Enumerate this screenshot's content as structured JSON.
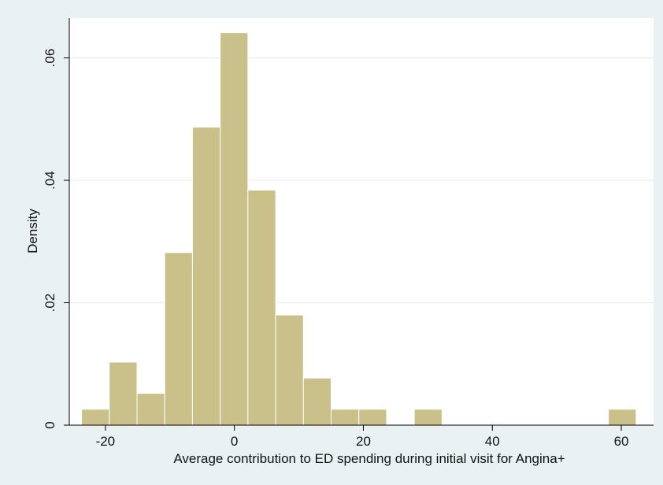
{
  "chart_data": {
    "type": "bar",
    "title": "",
    "xlabel": "Average contribution to ED spending during initial visit for Angina+",
    "ylabel": "Density",
    "xlim": [
      -25.6,
      65.0
    ],
    "ylim": [
      0,
      0.0665
    ],
    "x_ticks": [
      {
        "value": -20,
        "label": "-20"
      },
      {
        "value": 0,
        "label": "0"
      },
      {
        "value": 20,
        "label": "20"
      },
      {
        "value": 40,
        "label": "40"
      },
      {
        "value": 60,
        "label": "60"
      }
    ],
    "y_ticks": [
      {
        "value": 0,
        "label": "0"
      },
      {
        "value": 0.02,
        "label": ".02"
      },
      {
        "value": 0.04,
        "label": ".04"
      },
      {
        "value": 0.06,
        "label": ".06"
      }
    ],
    "grid": true,
    "bins": [
      {
        "x0": -23.7,
        "x1": -19.4,
        "density": 0.0026
      },
      {
        "x0": -19.4,
        "x1": -15.1,
        "density": 0.0103
      },
      {
        "x0": -15.1,
        "x1": -10.8,
        "density": 0.0052
      },
      {
        "x0": -10.8,
        "x1": -6.5,
        "density": 0.0282
      },
      {
        "x0": -6.5,
        "x1": -2.2,
        "density": 0.0487
      },
      {
        "x0": -2.2,
        "x1": 2.1,
        "density": 0.0641
      },
      {
        "x0": 2.1,
        "x1": 6.4,
        "density": 0.0384
      },
      {
        "x0": 6.4,
        "x1": 10.7,
        "density": 0.018
      },
      {
        "x0": 10.7,
        "x1": 15.0,
        "density": 0.0077
      },
      {
        "x0": 15.0,
        "x1": 19.3,
        "density": 0.0026
      },
      {
        "x0": 19.3,
        "x1": 23.6,
        "density": 0.0026
      },
      {
        "x0": 27.9,
        "x1": 32.2,
        "density": 0.0026
      },
      {
        "x0": 58.0,
        "x1": 62.3,
        "density": 0.0026
      }
    ],
    "colors": {
      "bar_fill": "#c9c08a",
      "plot_background": "#ffffff",
      "outer_background": "#eaf1f3",
      "grid": "#e6ecee",
      "axis": "#000000"
    }
  }
}
